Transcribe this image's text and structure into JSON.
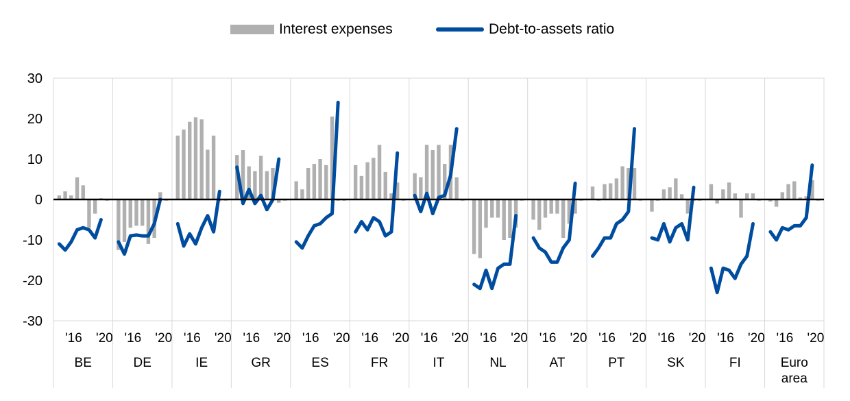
{
  "legend": {
    "interest_label": "Interest expenses",
    "debt_label": "Debt-to-assets ratio"
  },
  "colors": {
    "bars": "#b0b0b0",
    "line": "#004c9e",
    "zero_line": "#000000",
    "grid": "#d9d9d9"
  },
  "chart_data": {
    "type": "bar",
    "ylim": [
      -30,
      30
    ],
    "yticks": [
      -30,
      -20,
      -10,
      0,
      10,
      20,
      30
    ],
    "grid": true,
    "legend_position": "top",
    "x_tick_labels": [
      "'16",
      "'20"
    ],
    "series": [
      {
        "name": "Interest expenses",
        "type": "bar"
      },
      {
        "name": "Debt-to-assets ratio",
        "type": "line"
      }
    ],
    "countries": [
      {
        "label": "BE",
        "bars": [
          1,
          2,
          1,
          5.5,
          3.5,
          -7,
          -3.5,
          0.3,
          -0.3
        ],
        "line": [
          -11,
          -12.5,
          -10.5,
          -7.5,
          -7,
          -7.5,
          -9.5,
          -5
        ]
      },
      {
        "label": "DE",
        "bars": [
          -12.5,
          -10.5,
          -7,
          -6.5,
          -6.5,
          -11,
          -9.5,
          1.8,
          -0.3
        ],
        "line": [
          -10.5,
          -13.5,
          -9,
          -8.8,
          -9,
          -9,
          -6,
          0
        ]
      },
      {
        "label": "IE",
        "bars": [
          15.8,
          17.3,
          19.2,
          20.3,
          19.8,
          12.3,
          15.8,
          -0.4,
          -0.3
        ],
        "line": [
          -6,
          -11.5,
          -8.5,
          -11,
          -7,
          -4,
          -8,
          2
        ]
      },
      {
        "label": "GR",
        "bars": [
          11,
          12.2,
          8.2,
          7,
          10.8,
          7,
          7.8,
          -0.8,
          -0.3
        ],
        "line": [
          8,
          -1,
          2.5,
          -1,
          1,
          -2.5,
          0,
          10
        ]
      },
      {
        "label": "ES",
        "bars": [
          4.5,
          2.5,
          7.8,
          8.8,
          10,
          8.5,
          20.5,
          -0.3,
          -0.3
        ],
        "line": [
          -10.5,
          -12,
          -9,
          -6.5,
          -6,
          -4.5,
          -3.5,
          24
        ]
      },
      {
        "label": "FR",
        "bars": [
          8.5,
          5.8,
          9.2,
          10.3,
          13.5,
          6.8,
          1.5,
          4.2,
          -0.3
        ],
        "line": [
          -8,
          -5.5,
          -7.5,
          -4.5,
          -5.5,
          -9,
          -8,
          11.5
        ]
      },
      {
        "label": "IT",
        "bars": [
          6.5,
          5.5,
          13.5,
          12.2,
          13.5,
          8.8,
          13.5,
          5.5,
          -0.3
        ],
        "line": [
          1,
          -3,
          1.5,
          -3.5,
          0.5,
          1,
          6,
          17.5
        ]
      },
      {
        "label": "NL",
        "bars": [
          -13.5,
          -14.5,
          -7,
          -4.5,
          -4.5,
          -10,
          -9.5,
          -7,
          -0.3
        ],
        "line": [
          -21,
          -22,
          -17.5,
          -22,
          -17,
          -16,
          -16,
          -4
        ]
      },
      {
        "label": "AT",
        "bars": [
          -5,
          -7.5,
          -4.5,
          -3.5,
          -3.5,
          -9.5,
          -6,
          -3.5,
          -0.3
        ],
        "line": [
          -9.5,
          -12,
          -13,
          -15.5,
          -15.5,
          -12,
          -10,
          4
        ]
      },
      {
        "label": "PT",
        "bars": [
          3.2,
          -0.3,
          3.8,
          4,
          5.2,
          8.2,
          7.8,
          7.8,
          -0.3
        ],
        "line": [
          -14,
          -12,
          -9.5,
          -9.5,
          -6,
          -5,
          -3,
          17.5
        ]
      },
      {
        "label": "SK",
        "bars": [
          -3,
          -0.3,
          2.5,
          3,
          5.2,
          1.3,
          -3.5,
          -0.3,
          -0.3
        ],
        "line": [
          -9.5,
          -10,
          -6,
          -10.5,
          -7,
          -6,
          -10,
          3
        ]
      },
      {
        "label": "FI",
        "bars": [
          3.8,
          -1,
          2.5,
          4.2,
          1.5,
          -4.5,
          1.5,
          1.5,
          -0.3
        ],
        "line": [
          -17,
          -23,
          -17,
          -17.5,
          -19.5,
          -16,
          -14,
          -6
        ]
      },
      {
        "label": "Euro\narea",
        "bars": [
          -0.5,
          -1.8,
          1.8,
          3.8,
          4.5,
          0.5,
          0.8,
          4.8,
          -0.3
        ],
        "line": [
          -8,
          -10,
          -7,
          -7.5,
          -6.5,
          -6.5,
          -4.5,
          8.5
        ]
      }
    ]
  }
}
